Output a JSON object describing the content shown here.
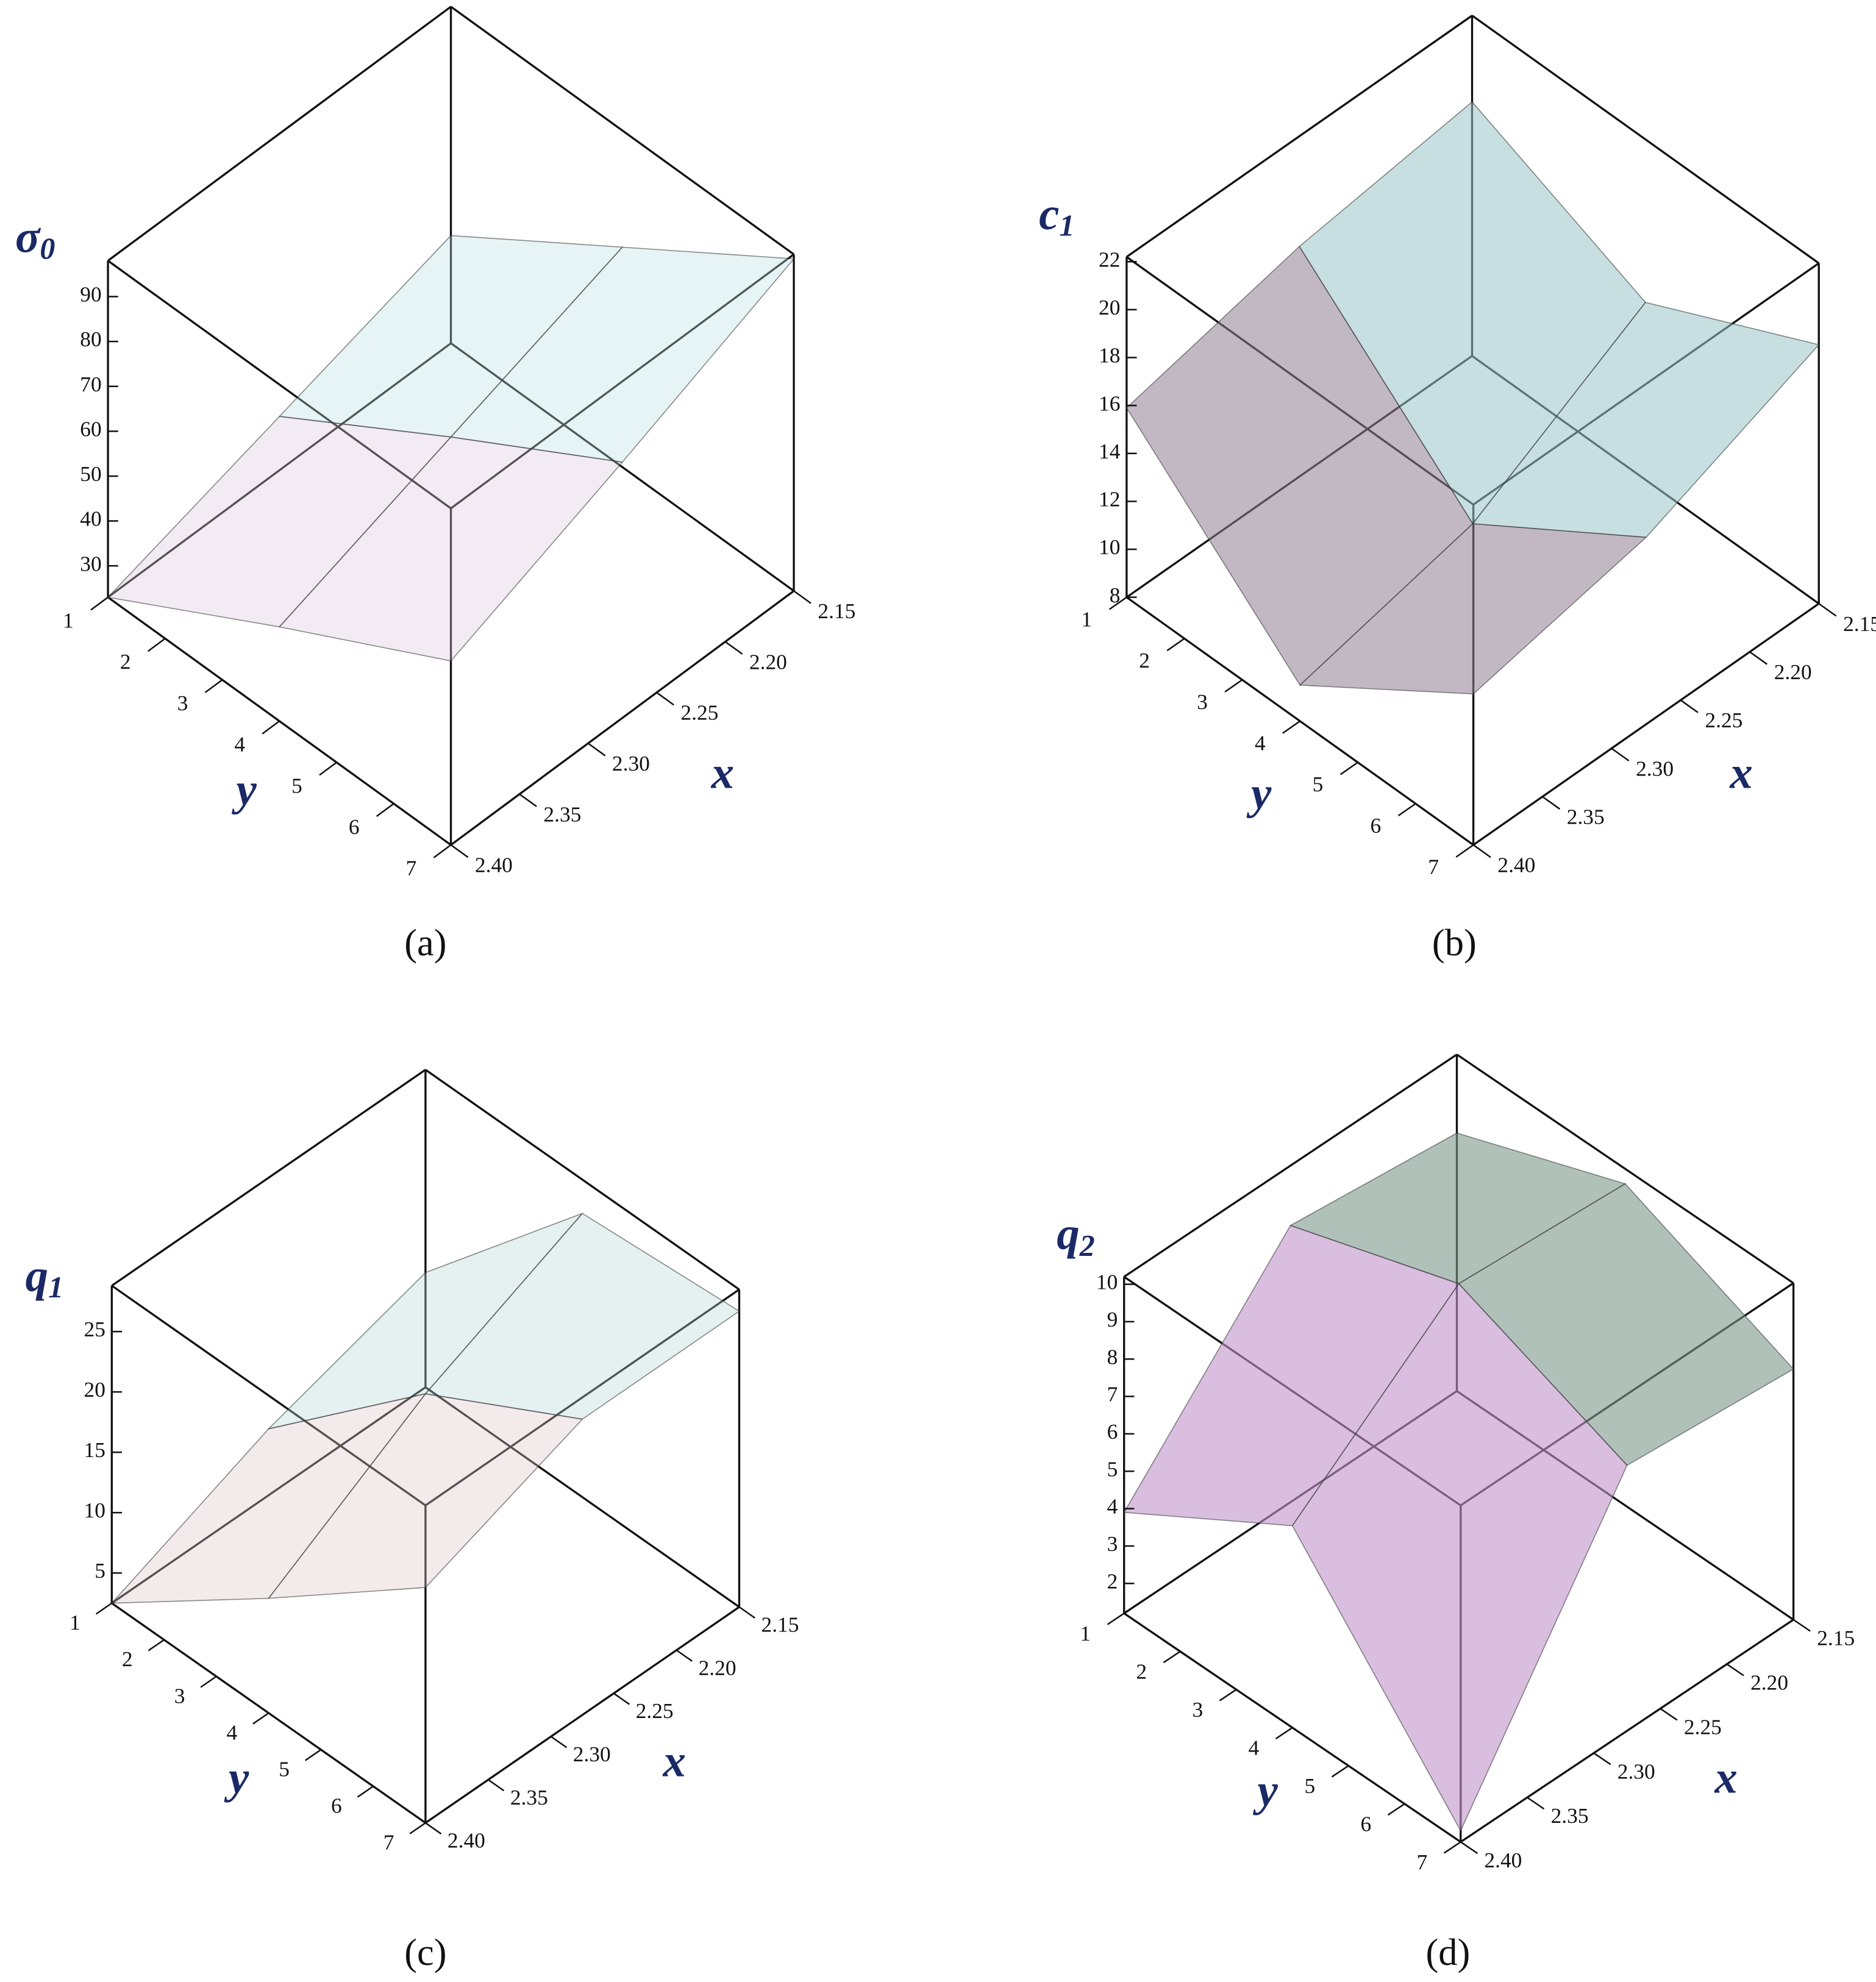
{
  "chart_data": [
    {
      "type": "surface",
      "panel_label": "(a)",
      "zlabel": [
        "σ",
        "0"
      ],
      "xlabel": "x",
      "ylabel": "y",
      "xlim": [
        2.15,
        2.4
      ],
      "ylim": [
        1,
        7
      ],
      "zlim": [
        23,
        98
      ],
      "xticks": [
        2.15,
        {
          "value": 2.2,
          "label": "2.20"
        },
        2.25,
        {
          "value": 2.3,
          "label": "2.30"
        },
        2.35,
        {
          "value": 2.4,
          "label": "2.40"
        }
      ],
      "yticks": [
        1,
        2,
        3,
        4,
        5,
        6,
        7
      ],
      "zticks": [
        30,
        40,
        50,
        60,
        70,
        80,
        90
      ],
      "colors": [
        "#a8ece8",
        "#f0b8d8"
      ],
      "opacity": 0.35,
      "surface": {
        "x": [
          2.15,
          2.275,
          2.4
        ],
        "y": [
          1,
          4,
          7
        ],
        "z": [
          [
            47,
            35,
            23
          ],
          [
            72,
            58,
            44
          ],
          [
            97,
            80,
            64
          ]
        ]
      }
    },
    {
      "type": "surface",
      "panel_label": "(b)",
      "zlabel": [
        "c",
        "1"
      ],
      "xlabel": "x",
      "ylabel": "y",
      "xlim": [
        2.15,
        2.4
      ],
      "ylim": [
        1,
        7
      ],
      "zlim": [
        8,
        22.2
      ],
      "xticks": [
        2.15,
        {
          "value": 2.2,
          "label": "2.20"
        },
        2.25,
        {
          "value": 2.3,
          "label": "2.30"
        },
        2.35,
        {
          "value": 2.4,
          "label": "2.40"
        }
      ],
      "yticks": [
        1,
        2,
        3,
        4,
        5,
        6,
        7
      ],
      "zticks": [
        8,
        10,
        12,
        14,
        16,
        18,
        20,
        22
      ],
      "colors": [
        "#9ee8e0",
        "#8a5a7a"
      ],
      "opacity": 0.55,
      "surface": {
        "x": [
          2.15,
          2.275,
          2.4
        ],
        "y": [
          1,
          4,
          7
        ],
        "z": [
          [
            18.6,
            17.6,
            15.9
          ],
          [
            15.4,
            11.2,
            9.5
          ],
          [
            18.8,
            15.8,
            14.3
          ]
        ]
      }
    },
    {
      "type": "surface",
      "panel_label": "(c)",
      "zlabel": [
        "q",
        "1"
      ],
      "xlabel": "x",
      "ylabel": "y",
      "xlim": [
        2.15,
        2.4
      ],
      "ylim": [
        1,
        7
      ],
      "zlim": [
        2.5,
        28.8
      ],
      "xticks": [
        2.15,
        {
          "value": 2.2,
          "label": "2.20"
        },
        2.25,
        {
          "value": 2.3,
          "label": "2.30"
        },
        2.35,
        {
          "value": 2.4,
          "label": "2.40"
        }
      ],
      "yticks": [
        1,
        2,
        3,
        4,
        5,
        6,
        7
      ],
      "zticks": [
        5,
        10,
        15,
        20,
        25
      ],
      "colors": [
        "#9fe0e0",
        "#f2b8c0"
      ],
      "opacity": 0.35,
      "surface": {
        "x": [
          2.15,
          2.275,
          2.4
        ],
        "y": [
          1,
          4,
          7
        ],
        "z": [
          [
            12,
            8,
            2.5
          ],
          [
            26,
            20,
            12
          ],
          [
            27,
            27,
            22
          ]
        ]
      }
    },
    {
      "type": "surface",
      "panel_label": "(d)",
      "zlabel": [
        "q",
        "2"
      ],
      "xlabel": "x",
      "ylabel": "y",
      "xlim": [
        2.15,
        2.4
      ],
      "ylim": [
        1,
        7
      ],
      "zlim": [
        1.2,
        10.2
      ],
      "xticks": [
        2.15,
        {
          "value": 2.2,
          "label": "2.20"
        },
        2.25,
        {
          "value": 2.3,
          "label": "2.30"
        },
        2.35,
        {
          "value": 2.4,
          "label": "2.40"
        }
      ],
      "yticks": [
        1,
        2,
        3,
        4,
        5,
        6,
        7
      ],
      "zticks": [
        2,
        3,
        4,
        5,
        6,
        7,
        8,
        9,
        10
      ],
      "colors": [
        "#5a9a6a",
        "#e090e8"
      ],
      "opacity": 0.6,
      "surface": {
        "x": [
          2.15,
          2.275,
          2.4
        ],
        "y": [
          1,
          4,
          7
        ],
        "z": [
          [
            8.1,
            8.6,
            3.9
          ],
          [
            9.8,
            10.1,
            6.6
          ],
          [
            7.9,
            8.3,
            1.5
          ]
        ]
      }
    }
  ]
}
